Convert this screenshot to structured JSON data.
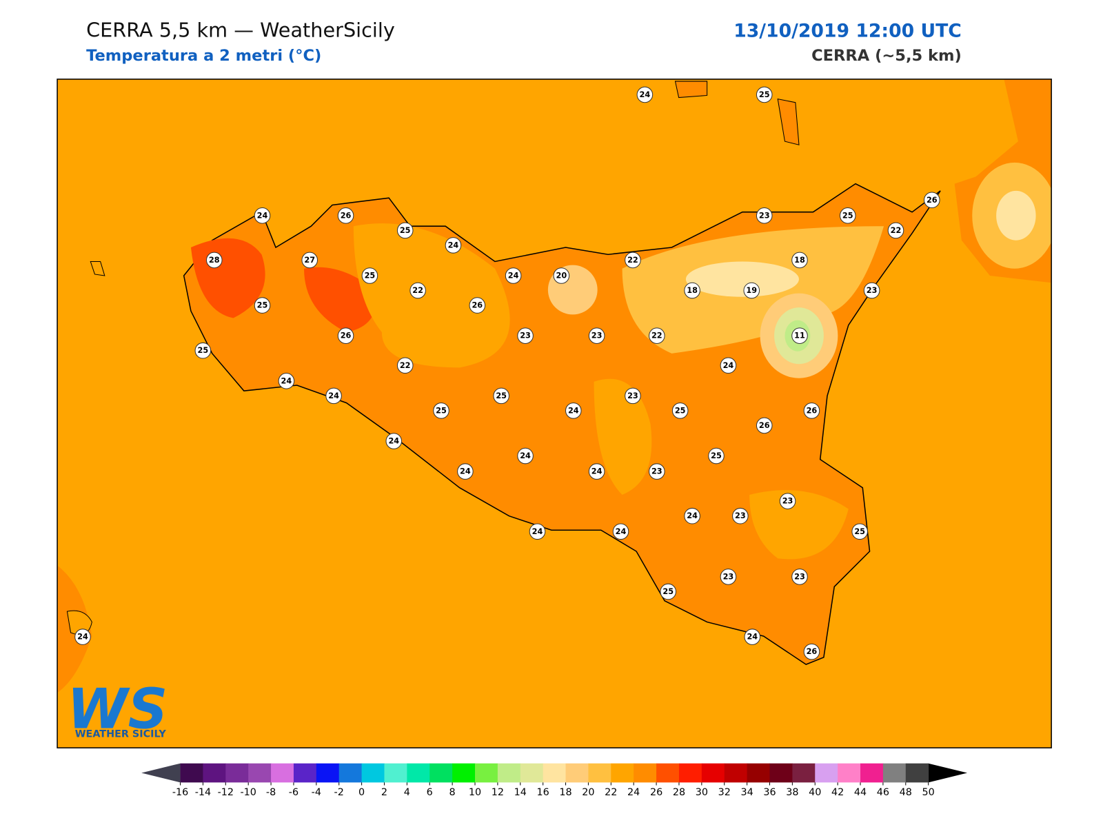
{
  "header": {
    "title": "CERRA 5,5 km — WeatherSicily",
    "subtitle": "Temperatura a 2 metri (°C)",
    "date": "13/10/2019 12:00 UTC",
    "model": "CERRA (~5,5 km)"
  },
  "stations": [
    24,
    25,
    24,
    26,
    25,
    24,
    23,
    25,
    26,
    22,
    28,
    27,
    25,
    22,
    24,
    20,
    22,
    18,
    18,
    19,
    23,
    25,
    26,
    26,
    23,
    23,
    22,
    11,
    25,
    22,
    24,
    24,
    24,
    25,
    23,
    25,
    24,
    25,
    26,
    26,
    24,
    25,
    24,
    24,
    24,
    23,
    23,
    24,
    23,
    24,
    24,
    25,
    25,
    23,
    23,
    24,
    24,
    26
  ],
  "colorbar": {
    "ticks": [
      -16,
      -14,
      -12,
      -10,
      -8,
      -6,
      -4,
      -2,
      0,
      2,
      4,
      6,
      8,
      10,
      12,
      14,
      16,
      18,
      20,
      22,
      24,
      26,
      28,
      30,
      32,
      34,
      36,
      38,
      40,
      42,
      44,
      46,
      48,
      50
    ],
    "colors": [
      "#3f0a4f",
      "#5e1480",
      "#7a2c99",
      "#9947b0",
      "#d86fe0",
      "#5a24c8",
      "#0a14f5",
      "#1478dc",
      "#00c8e0",
      "#50f0d0",
      "#00e8a8",
      "#00e060",
      "#00f000",
      "#78f040",
      "#c0ec88",
      "#e0e898",
      "#ffe4a0",
      "#ffcc78",
      "#ffc040",
      "#ffa500",
      "#ff8c00",
      "#ff5000",
      "#ff1e00",
      "#e60000",
      "#c00000",
      "#960000",
      "#6e0018",
      "#7a2040",
      "#d8a0f0",
      "#ff80c8",
      "#f02090",
      "#808080",
      "#404040"
    ],
    "under": "#404050",
    "over": "#000000"
  },
  "logo": {
    "mark": "WS",
    "text": "WEATHER SICILY"
  }
}
